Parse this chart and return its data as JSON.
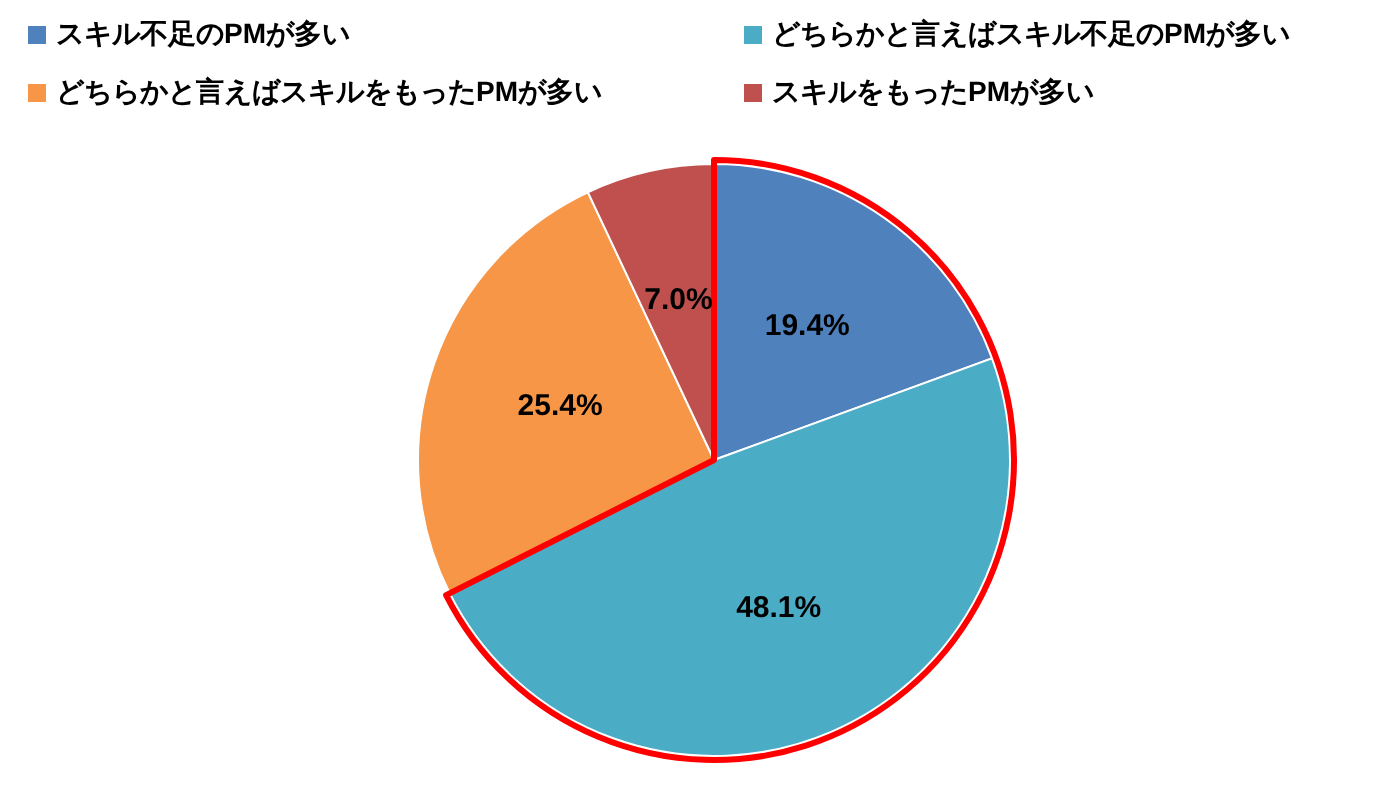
{
  "chart_data": {
    "type": "pie",
    "categories": [
      "スキル不足のPMが多い",
      "どちらかと言えばスキル不足のPMが多い",
      "どちらかと言えばスキルをもったPMが多い",
      "スキルをもったPMが多い"
    ],
    "values": [
      19.4,
      48.1,
      25.4,
      7.0
    ],
    "colors": [
      "#4f81bd",
      "#4bacc6",
      "#f79646",
      "#c0504d"
    ],
    "value_labels": [
      "19.4%",
      "48.1%",
      "25.4%",
      "7.0%"
    ],
    "legend": "top"
  }
}
